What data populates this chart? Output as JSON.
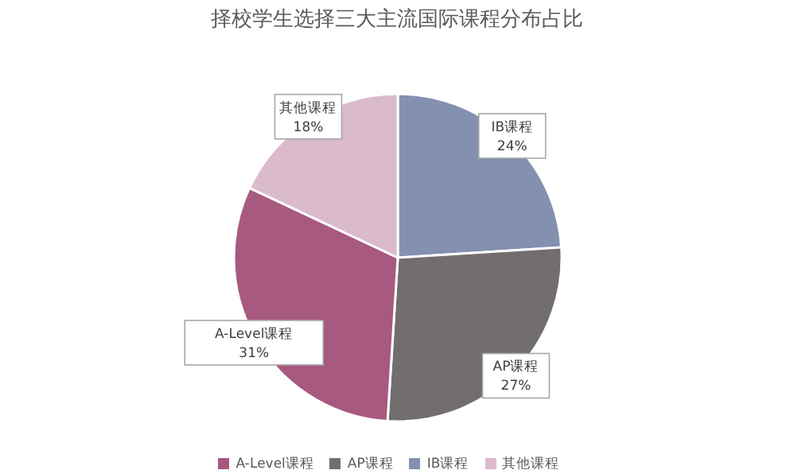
{
  "chart_data": {
    "type": "pie",
    "title": "择校学生选择三大主流国际课程分布占比",
    "categories": [
      "IB课程",
      "AP课程",
      "A-Level课程",
      "其他课程"
    ],
    "values": [
      24,
      27,
      31,
      18
    ],
    "value_labels": [
      "24%",
      "27%",
      "31%",
      "18%"
    ],
    "colors": [
      "#8390b0",
      "#726d6f",
      "#a8597f",
      "#dbbacb"
    ],
    "legend": "bottom"
  }
}
